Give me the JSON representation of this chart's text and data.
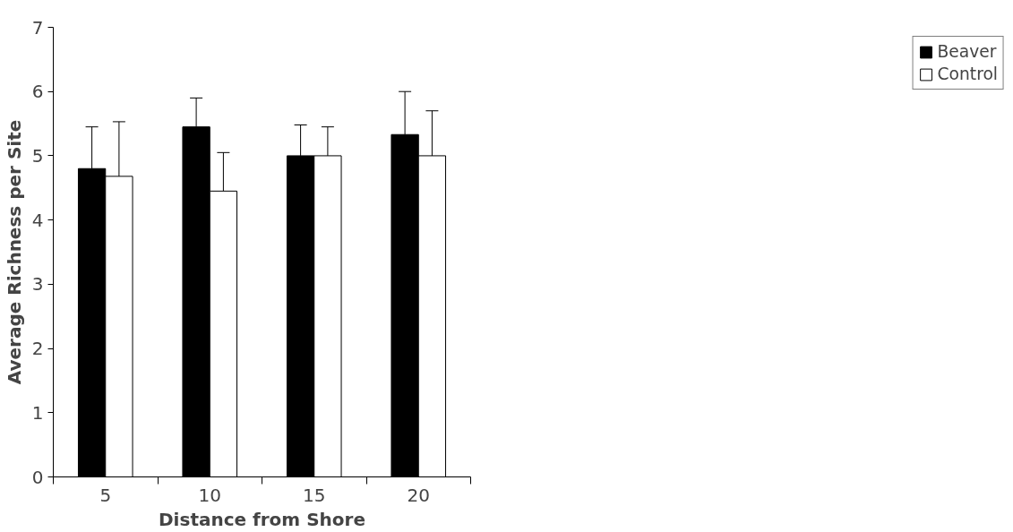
{
  "chart_data": {
    "type": "bar",
    "xlabel": "Distance from Shore",
    "ylabel": "Average Richness per Site",
    "categories": [
      "5",
      "10",
      "15",
      "20"
    ],
    "series": [
      {
        "name": "Beaver",
        "color": "#000000",
        "values": [
          4.8,
          5.45,
          5.0,
          5.33
        ],
        "errors": [
          [
            4.8,
            5.45
          ],
          [
            5.45,
            5.9
          ],
          [
            5.0,
            5.48
          ],
          [
            5.33,
            6.0
          ]
        ]
      },
      {
        "name": "Control",
        "color": "#ffffff",
        "values": [
          4.68,
          4.45,
          5.0,
          5.0
        ],
        "errors": [
          [
            4.68,
            5.53
          ],
          [
            4.45,
            5.05
          ],
          [
            5.0,
            5.45
          ],
          [
            5.0,
            5.7
          ]
        ]
      }
    ],
    "ylim": [
      0,
      7
    ],
    "yticks": [
      0,
      1,
      2,
      3,
      4,
      5,
      6,
      7
    ],
    "grid": false,
    "legend": "right"
  }
}
